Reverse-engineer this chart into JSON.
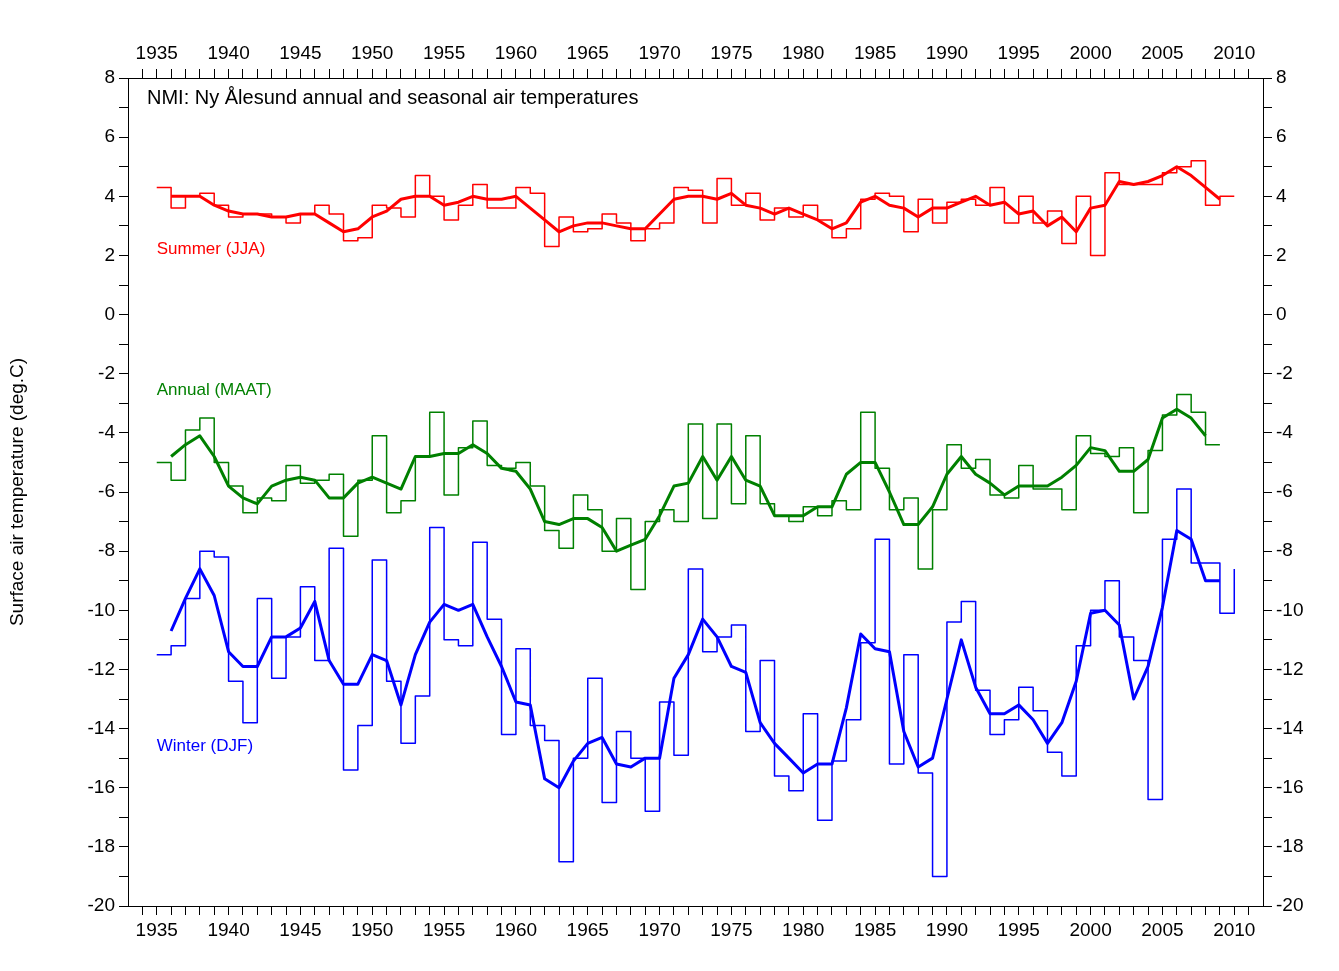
{
  "chart_data": {
    "type": "step",
    "title": "NMI: Ny Ålesund annual and seasonal air temperatures",
    "ylabel": "Surface air temperature (deg.C)",
    "xlim": [
      1933,
      2012
    ],
    "x2lim": [
      1933,
      2012
    ],
    "ylim": [
      -20,
      8
    ],
    "y2lim": [
      -20,
      8
    ],
    "xticks": [
      {
        "value": 1934,
        "label": null
      },
      1935,
      {
        "value": 1936,
        "label": null
      },
      {
        "value": 1937,
        "label": null
      },
      {
        "value": 1938,
        "label": null
      },
      {
        "value": 1939,
        "label": null
      },
      1940,
      {
        "value": 1941,
        "label": null
      },
      {
        "value": 1942,
        "label": null
      },
      {
        "value": 1943,
        "label": null
      },
      {
        "value": 1944,
        "label": null
      },
      1945,
      {
        "value": 1946,
        "label": null
      },
      {
        "value": 1947,
        "label": null
      },
      {
        "value": 1948,
        "label": null
      },
      {
        "value": 1949,
        "label": null
      },
      1950,
      {
        "value": 1951,
        "label": null
      },
      {
        "value": 1952,
        "label": null
      },
      {
        "value": 1953,
        "label": null
      },
      {
        "value": 1954,
        "label": null
      },
      1955,
      {
        "value": 1956,
        "label": null
      },
      {
        "value": 1957,
        "label": null
      },
      {
        "value": 1958,
        "label": null
      },
      {
        "value": 1959,
        "label": null
      },
      1960,
      {
        "value": 1961,
        "label": null
      },
      {
        "value": 1962,
        "label": null
      },
      {
        "value": 1963,
        "label": null
      },
      {
        "value": 1964,
        "label": null
      },
      1965,
      {
        "value": 1966,
        "label": null
      },
      {
        "value": 1967,
        "label": null
      },
      {
        "value": 1968,
        "label": null
      },
      {
        "value": 1969,
        "label": null
      },
      1970,
      {
        "value": 1971,
        "label": null
      },
      {
        "value": 1972,
        "label": null
      },
      {
        "value": 1973,
        "label": null
      },
      {
        "value": 1974,
        "label": null
      },
      1975,
      {
        "value": 1976,
        "label": null
      },
      {
        "value": 1977,
        "label": null
      },
      {
        "value": 1978,
        "label": null
      },
      {
        "value": 1979,
        "label": null
      },
      1980,
      {
        "value": 1981,
        "label": null
      },
      {
        "value": 1982,
        "label": null
      },
      {
        "value": 1983,
        "label": null
      },
      {
        "value": 1984,
        "label": null
      },
      1985,
      {
        "value": 1986,
        "label": null
      },
      {
        "value": 1987,
        "label": null
      },
      {
        "value": 1988,
        "label": null
      },
      {
        "value": 1989,
        "label": null
      },
      1990,
      {
        "value": 1991,
        "label": null
      },
      {
        "value": 1992,
        "label": null
      },
      {
        "value": 1993,
        "label": null
      },
      {
        "value": 1994,
        "label": null
      },
      1995,
      {
        "value": 1996,
        "label": null
      },
      {
        "value": 1997,
        "label": null
      },
      {
        "value": 1998,
        "label": null
      },
      {
        "value": 1999,
        "label": null
      },
      2000,
      {
        "value": 2001,
        "label": null
      },
      {
        "value": 2002,
        "label": null
      },
      {
        "value": 2003,
        "label": null
      },
      {
        "value": 2004,
        "label": null
      },
      2005,
      {
        "value": 2006,
        "label": null
      },
      {
        "value": 2007,
        "label": null
      },
      {
        "value": 2008,
        "label": null
      },
      {
        "value": 2009,
        "label": null
      },
      2010,
      {
        "value": 2011,
        "label": null
      }
    ],
    "x2ticks": [
      {
        "value": 1934,
        "label": null
      },
      1935,
      {
        "value": 1936,
        "label": null
      },
      {
        "value": 1937,
        "label": null
      },
      {
        "value": 1938,
        "label": null
      },
      {
        "value": 1939,
        "label": null
      },
      1940,
      {
        "value": 1941,
        "label": null
      },
      {
        "value": 1942,
        "label": null
      },
      {
        "value": 1943,
        "label": null
      },
      {
        "value": 1944,
        "label": null
      },
      1945,
      {
        "value": 1946,
        "label": null
      },
      {
        "value": 1947,
        "label": null
      },
      {
        "value": 1948,
        "label": null
      },
      {
        "value": 1949,
        "label": null
      },
      1950,
      {
        "value": 1951,
        "label": null
      },
      {
        "value": 1952,
        "label": null
      },
      {
        "value": 1953,
        "label": null
      },
      {
        "value": 1954,
        "label": null
      },
      1955,
      {
        "value": 1956,
        "label": null
      },
      {
        "value": 1957,
        "label": null
      },
      {
        "value": 1958,
        "label": null
      },
      {
        "value": 1959,
        "label": null
      },
      1960,
      {
        "value": 1961,
        "label": null
      },
      {
        "value": 1962,
        "label": null
      },
      {
        "value": 1963,
        "label": null
      },
      {
        "value": 1964,
        "label": null
      },
      1965,
      {
        "value": 1966,
        "label": null
      },
      {
        "value": 1967,
        "label": null
      },
      {
        "value": 1968,
        "label": null
      },
      {
        "value": 1969,
        "label": null
      },
      1970,
      {
        "value": 1971,
        "label": null
      },
      {
        "value": 1972,
        "label": null
      },
      {
        "value": 1973,
        "label": null
      },
      {
        "value": 1974,
        "label": null
      },
      1975,
      {
        "value": 1976,
        "label": null
      },
      {
        "value": 1977,
        "label": null
      },
      {
        "value": 1978,
        "label": null
      },
      {
        "value": 1979,
        "label": null
      },
      1980,
      {
        "value": 1981,
        "label": null
      },
      {
        "value": 1982,
        "label": null
      },
      {
        "value": 1983,
        "label": null
      },
      {
        "value": 1984,
        "label": null
      },
      1985,
      {
        "value": 1986,
        "label": null
      },
      {
        "value": 1987,
        "label": null
      },
      {
        "value": 1988,
        "label": null
      },
      {
        "value": 1989,
        "label": null
      },
      1990,
      {
        "value": 1991,
        "label": null
      },
      {
        "value": 1992,
        "label": null
      },
      {
        "value": 1993,
        "label": null
      },
      {
        "value": 1994,
        "label": null
      },
      1995,
      {
        "value": 1996,
        "label": null
      },
      {
        "value": 1997,
        "label": null
      },
      {
        "value": 1998,
        "label": null
      },
      {
        "value": 1999,
        "label": null
      },
      2000,
      {
        "value": 2001,
        "label": null
      },
      {
        "value": 2002,
        "label": null
      },
      {
        "value": 2003,
        "label": null
      },
      {
        "value": 2004,
        "label": null
      },
      2005,
      {
        "value": 2006,
        "label": null
      },
      {
        "value": 2007,
        "label": null
      },
      {
        "value": 2008,
        "label": null
      },
      {
        "value": 2009,
        "label": null
      },
      2010,
      {
        "value": 2011,
        "label": null
      }
    ],
    "yticks": [
      -20,
      {
        "value": -19,
        "label": null
      },
      -18,
      {
        "value": -17,
        "label": null
      },
      -16,
      {
        "value": -15,
        "label": null
      },
      -14,
      {
        "value": -13,
        "label": null
      },
      -12,
      {
        "value": -11,
        "label": null
      },
      -10,
      {
        "value": -9,
        "label": null
      },
      -8,
      {
        "value": -7,
        "label": null
      },
      -6,
      {
        "value": -5,
        "label": null
      },
      -4,
      {
        "value": -3,
        "label": null
      },
      -2,
      {
        "value": -1,
        "label": null
      },
      0,
      {
        "value": 1,
        "label": null
      },
      2,
      {
        "value": 3,
        "label": null
      },
      4,
      {
        "value": 5,
        "label": null
      },
      6,
      {
        "value": 7,
        "label": null
      },
      8
    ],
    "y2ticks": [
      -20,
      {
        "value": -19,
        "label": null
      },
      -18,
      {
        "value": -17,
        "label": null
      },
      -16,
      {
        "value": -15,
        "label": null
      },
      -14,
      {
        "value": -13,
        "label": null
      },
      -12,
      {
        "value": -11,
        "label": null
      },
      -10,
      {
        "value": -9,
        "label": null
      },
      -8,
      {
        "value": -7,
        "label": null
      },
      -6,
      {
        "value": -5,
        "label": null
      },
      -4,
      {
        "value": -3,
        "label": null
      },
      -2,
      {
        "value": -1,
        "label": null
      },
      0,
      {
        "value": 1,
        "label": null
      },
      2,
      {
        "value": 3,
        "label": null
      },
      4,
      {
        "value": 5,
        "label": null
      },
      6,
      {
        "value": 7,
        "label": null
      },
      8
    ],
    "series": [
      {
        "type": "step",
        "name": "Summer (JJA)",
        "color": "#ff0000",
        "x": [
          1935,
          1936,
          1937,
          1938,
          1939,
          1940,
          1941,
          1942,
          1943,
          1944,
          1945,
          1946,
          1947,
          1948,
          1949,
          1950,
          1951,
          1952,
          1953,
          1954,
          1955,
          1956,
          1957,
          1958,
          1959,
          1960,
          1961,
          1962,
          1963,
          1964,
          1965,
          1966,
          1967,
          1968,
          1969,
          1970,
          1971,
          1972,
          1973,
          1974,
          1975,
          1976,
          1977,
          1978,
          1979,
          1980,
          1981,
          1982,
          1983,
          1984,
          1985,
          1986,
          1987,
          1988,
          1989,
          1990,
          1991,
          1992,
          1993,
          1994,
          1995,
          1996,
          1997,
          1998,
          1999,
          2000,
          2001,
          2002,
          2003,
          2004,
          2005,
          2006,
          2007,
          2008,
          2009,
          2010
        ],
        "values": [
          4.3,
          3.6,
          4.0,
          4.1,
          3.7,
          3.3,
          3.4,
          3.4,
          3.3,
          3.1,
          3.4,
          3.7,
          3.4,
          2.5,
          2.6,
          3.7,
          3.6,
          3.3,
          4.7,
          4.0,
          3.2,
          3.7,
          4.4,
          3.6,
          3.6,
          4.3,
          4.1,
          2.3,
          3.3,
          2.8,
          2.9,
          3.4,
          3.1,
          2.5,
          2.9,
          3.1,
          4.3,
          4.2,
          3.1,
          4.6,
          3.7,
          4.1,
          3.2,
          3.6,
          3.3,
          3.7,
          3.2,
          2.6,
          2.9,
          3.9,
          4.1,
          4.0,
          2.8,
          3.9,
          3.1,
          3.8,
          3.9,
          3.7,
          4.3,
          3.1,
          4.0,
          3.1,
          3.5,
          2.4,
          4.0,
          2.0,
          4.8,
          4.4,
          4.4,
          4.4,
          4.8,
          5.0,
          5.2,
          3.7,
          4.0,
          4.0
        ]
      },
      {
        "type": "line",
        "color": "#ff0000",
        "x": [
          1936,
          1937,
          1938,
          1939,
          1940,
          1941,
          1942,
          1943,
          1944,
          1945,
          1946,
          1947,
          1948,
          1949,
          1950,
          1951,
          1952,
          1953,
          1954,
          1955,
          1956,
          1957,
          1958,
          1959,
          1960,
          1961,
          1962,
          1963,
          1964,
          1965,
          1966,
          1967,
          1968,
          1969,
          1970,
          1971,
          1972,
          1973,
          1974,
          1975,
          1976,
          1977,
          1978,
          1979,
          1980,
          1981,
          1982,
          1983,
          1984,
          1985,
          1986,
          1987,
          1988,
          1989,
          1990,
          1991,
          1992,
          1993,
          1994,
          1995,
          1996,
          1997,
          1998,
          1999,
          2000,
          2001,
          2002,
          2003,
          2004,
          2005,
          2006,
          2007,
          2008,
          2009
        ],
        "values": [
          4.0,
          4.0,
          4.0,
          3.7,
          3.5,
          3.4,
          3.4,
          3.3,
          3.3,
          3.4,
          3.4,
          3.1,
          2.8,
          2.9,
          3.3,
          3.5,
          3.9,
          4.0,
          4.0,
          3.7,
          3.8,
          4.0,
          3.9,
          3.9,
          4.0,
          3.6,
          3.2,
          2.8,
          3.0,
          3.1,
          3.1,
          3.0,
          2.9,
          2.9,
          3.4,
          3.9,
          4.0,
          4.0,
          3.9,
          4.1,
          3.7,
          3.6,
          3.4,
          3.6,
          3.4,
          3.2,
          2.9,
          3.1,
          3.8,
          4.0,
          3.7,
          3.6,
          3.3,
          3.6,
          3.6,
          3.8,
          4.0,
          3.7,
          3.8,
          3.4,
          3.5,
          3.0,
          3.3,
          2.8,
          3.6,
          3.7,
          4.5,
          4.4,
          4.5,
          4.7,
          5.0,
          4.7,
          4.3,
          3.9
        ]
      },
      {
        "type": "step",
        "name": "Annual (MAAT)",
        "color": "#008000",
        "x": [
          1935,
          1936,
          1937,
          1938,
          1939,
          1940,
          1941,
          1942,
          1943,
          1944,
          1945,
          1946,
          1947,
          1948,
          1949,
          1950,
          1951,
          1952,
          1953,
          1954,
          1955,
          1956,
          1957,
          1958,
          1959,
          1960,
          1961,
          1962,
          1963,
          1964,
          1965,
          1966,
          1967,
          1968,
          1969,
          1970,
          1971,
          1972,
          1973,
          1974,
          1975,
          1976,
          1977,
          1978,
          1979,
          1980,
          1981,
          1982,
          1983,
          1984,
          1985,
          1986,
          1987,
          1988,
          1989,
          1990,
          1991,
          1992,
          1993,
          1994,
          1995,
          1996,
          1997,
          1998,
          1999,
          2000,
          2001,
          2002,
          2003,
          2004,
          2005,
          2006,
          2007,
          2008,
          2009
        ],
        "values": [
          -5.0,
          -5.6,
          -3.9,
          -3.5,
          -5.0,
          -5.8,
          -6.7,
          -6.2,
          -6.3,
          -5.1,
          -5.7,
          -5.6,
          -5.4,
          -7.5,
          -5.6,
          -4.1,
          -6.7,
          -6.3,
          -4.8,
          -3.3,
          -6.1,
          -4.5,
          -3.6,
          -5.1,
          -5.2,
          -5.0,
          -5.8,
          -7.3,
          -7.9,
          -6.1,
          -6.6,
          -8.0,
          -6.9,
          -9.3,
          -7.0,
          -6.6,
          -7.0,
          -3.7,
          -6.9,
          -3.7,
          -6.4,
          -4.1,
          -6.4,
          -6.8,
          -7.0,
          -6.5,
          -6.8,
          -6.3,
          -6.6,
          -3.3,
          -5.2,
          -6.6,
          -6.2,
          -8.6,
          -6.6,
          -4.4,
          -5.2,
          -4.9,
          -6.1,
          -6.2,
          -5.1,
          -5.9,
          -5.9,
          -6.6,
          -4.1,
          -4.7,
          -4.8,
          -4.5,
          -6.7,
          -4.6,
          -3.4,
          -2.7,
          -3.3,
          -4.4,
          -4.4
        ]
      },
      {
        "type": "line",
        "color": "#008000",
        "x": [
          1936,
          1937,
          1938,
          1939,
          1940,
          1941,
          1942,
          1943,
          1944,
          1945,
          1946,
          1947,
          1948,
          1949,
          1950,
          1951,
          1952,
          1953,
          1954,
          1955,
          1956,
          1957,
          1958,
          1959,
          1960,
          1961,
          1962,
          1963,
          1964,
          1965,
          1966,
          1967,
          1968,
          1969,
          1970,
          1971,
          1972,
          1973,
          1974,
          1975,
          1976,
          1977,
          1978,
          1979,
          1980,
          1981,
          1982,
          1983,
          1984,
          1985,
          1986,
          1987,
          1988,
          1989,
          1990,
          1991,
          1992,
          1993,
          1994,
          1995,
          1996,
          1997,
          1998,
          1999,
          2000,
          2001,
          2002,
          2003,
          2004,
          2005,
          2006,
          2007,
          2008
        ],
        "values": [
          -4.8,
          -4.4,
          -4.1,
          -4.8,
          -5.8,
          -6.2,
          -6.4,
          -5.8,
          -5.6,
          -5.5,
          -5.6,
          -6.2,
          -6.2,
          -5.7,
          -5.5,
          -5.7,
          -5.9,
          -4.8,
          -4.8,
          -4.7,
          -4.7,
          -4.4,
          -4.7,
          -5.2,
          -5.3,
          -5.9,
          -7.0,
          -7.1,
          -6.9,
          -6.9,
          -7.2,
          -8.0,
          -7.8,
          -7.6,
          -6.8,
          -5.8,
          -5.7,
          -4.8,
          -5.6,
          -4.8,
          -5.6,
          -5.8,
          -6.8,
          -6.8,
          -6.8,
          -6.5,
          -6.5,
          -5.4,
          -5.0,
          -5.0,
          -6.0,
          -7.1,
          -7.1,
          -6.5,
          -5.4,
          -4.8,
          -5.4,
          -5.7,
          -6.1,
          -5.8,
          -5.8,
          -5.8,
          -5.5,
          -5.1,
          -4.5,
          -4.6,
          -5.3,
          -5.3,
          -4.9,
          -3.5,
          -3.2,
          -3.5,
          -4.1
        ]
      },
      {
        "type": "step",
        "name": "Winter (DJF)",
        "color": "#0000ff",
        "x": [
          1935,
          1936,
          1937,
          1938,
          1939,
          1940,
          1941,
          1942,
          1943,
          1944,
          1945,
          1946,
          1947,
          1948,
          1949,
          1950,
          1951,
          1952,
          1953,
          1954,
          1955,
          1956,
          1957,
          1958,
          1959,
          1960,
          1961,
          1962,
          1963,
          1964,
          1965,
          1966,
          1967,
          1968,
          1969,
          1970,
          1971,
          1972,
          1973,
          1974,
          1975,
          1976,
          1977,
          1978,
          1979,
          1980,
          1981,
          1982,
          1983,
          1984,
          1985,
          1986,
          1987,
          1988,
          1989,
          1990,
          1991,
          1992,
          1993,
          1994,
          1995,
          1996,
          1997,
          1998,
          1999,
          2000,
          2001,
          2002,
          2003,
          2004,
          2005,
          2006,
          2007,
          2008,
          2009,
          2010
        ],
        "values": [
          -11.5,
          -11.2,
          -9.6,
          -8.0,
          -8.2,
          -12.4,
          -13.8,
          -9.6,
          -12.3,
          -10.9,
          -9.2,
          -11.7,
          -7.9,
          -15.4,
          -13.9,
          -8.3,
          -12.4,
          -14.5,
          -12.9,
          -7.2,
          -11.0,
          -11.2,
          -7.7,
          -10.3,
          -14.2,
          -11.3,
          -13.9,
          -14.4,
          -18.5,
          -15.0,
          -12.3,
          -16.5,
          -14.1,
          -15.0,
          -16.8,
          -13.1,
          -14.9,
          -8.6,
          -11.4,
          -10.9,
          -10.5,
          -14.1,
          -11.7,
          -15.6,
          -16.1,
          -13.5,
          -17.1,
          -15.1,
          -13.7,
          -11.1,
          -7.6,
          -15.2,
          -11.5,
          -15.5,
          -19.0,
          -10.4,
          -9.7,
          -12.7,
          -14.2,
          -13.7,
          -12.6,
          -13.4,
          -14.8,
          -15.6,
          -11.2,
          -10.0,
          -9.0,
          -10.9,
          -11.7,
          -16.4,
          -7.6,
          -5.9,
          -8.4,
          -8.4,
          -10.1,
          -8.6
        ]
      },
      {
        "type": "line",
        "color": "#0000ff",
        "x": [
          1936,
          1937,
          1938,
          1939,
          1940,
          1941,
          1942,
          1943,
          1944,
          1945,
          1946,
          1947,
          1948,
          1949,
          1950,
          1951,
          1952,
          1953,
          1954,
          1955,
          1956,
          1957,
          1958,
          1959,
          1960,
          1961,
          1962,
          1963,
          1964,
          1965,
          1966,
          1967,
          1968,
          1969,
          1970,
          1971,
          1972,
          1973,
          1974,
          1975,
          1976,
          1977,
          1978,
          1979,
          1980,
          1981,
          1982,
          1983,
          1984,
          1985,
          1986,
          1987,
          1988,
          1989,
          1990,
          1991,
          1992,
          1993,
          1994,
          1995,
          1996,
          1997,
          1998,
          1999,
          2000,
          2001,
          2002,
          2003,
          2004,
          2005,
          2006,
          2007,
          2008,
          2009
        ],
        "values": [
          -10.7,
          -9.6,
          -8.6,
          -9.5,
          -11.4,
          -11.9,
          -11.9,
          -10.9,
          -10.9,
          -10.6,
          -9.7,
          -11.7,
          -12.5,
          -12.5,
          -11.5,
          -11.7,
          -13.2,
          -11.5,
          -10.4,
          -9.8,
          -10.0,
          -9.8,
          -10.9,
          -11.9,
          -13.1,
          -13.2,
          -15.7,
          -16.0,
          -15.1,
          -14.5,
          -14.3,
          -15.2,
          -15.3,
          -15.0,
          -15.0,
          -12.3,
          -11.5,
          -10.3,
          -10.9,
          -11.9,
          -12.1,
          -13.8,
          -14.5,
          -15.0,
          -15.5,
          -15.2,
          -15.2,
          -13.3,
          -10.8,
          -11.3,
          -11.4,
          -14.1,
          -15.3,
          -15.0,
          -13.0,
          -11.0,
          -12.6,
          -13.5,
          -13.5,
          -13.2,
          -13.7,
          -14.5,
          -13.8,
          -12.4,
          -10.1,
          -10.0,
          -10.5,
          -13.0,
          -11.9,
          -9.9,
          -7.3,
          -7.6,
          -9.0,
          -9.0
        ]
      }
    ]
  }
}
